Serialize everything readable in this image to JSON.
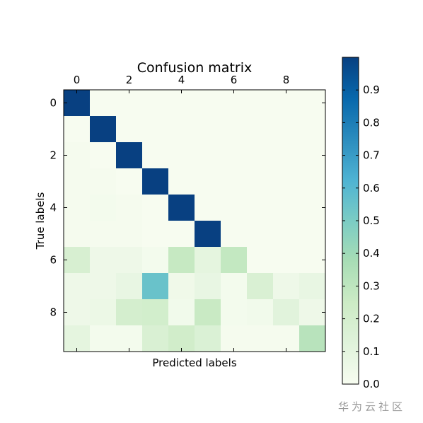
{
  "chart_data": {
    "type": "heatmap",
    "title": "Confusion matrix",
    "xlabel": "Predicted labels",
    "ylabel": "True labels",
    "x_tick_labels": [
      "0",
      "2",
      "4",
      "6",
      "8"
    ],
    "x_tick_values": [
      0,
      2,
      4,
      6,
      8
    ],
    "y_tick_labels": [
      "0",
      "2",
      "4",
      "6",
      "8"
    ],
    "y_tick_values": [
      0,
      2,
      4,
      6,
      8
    ],
    "x_tick_position": "top",
    "colormap": "GnBu",
    "value_range": [
      0.0,
      1.0
    ],
    "colorbar_ticks": [
      "0.0",
      "0.1",
      "0.2",
      "0.3",
      "0.4",
      "0.5",
      "0.6",
      "0.7",
      "0.8",
      "0.9"
    ],
    "colorbar_tick_values": [
      0.0,
      0.1,
      0.2,
      0.3,
      0.4,
      0.5,
      0.6,
      0.7,
      0.8,
      0.9
    ],
    "matrix": [
      [
        1.0,
        0.0,
        0.0,
        0.0,
        0.0,
        0.0,
        0.0,
        0.0,
        0.0,
        0.0
      ],
      [
        0.0,
        1.0,
        0.0,
        0.0,
        0.0,
        0.0,
        0.0,
        0.0,
        0.0,
        0.0
      ],
      [
        0.01,
        0.0,
        1.0,
        0.0,
        0.0,
        0.0,
        0.0,
        0.0,
        0.0,
        0.0
      ],
      [
        0.01,
        0.01,
        0.0,
        1.0,
        0.0,
        0.0,
        0.0,
        0.0,
        0.0,
        0.0
      ],
      [
        0.01,
        0.02,
        0.01,
        0.0,
        1.0,
        0.0,
        0.0,
        0.0,
        0.0,
        0.0
      ],
      [
        0.01,
        0.01,
        0.01,
        0.0,
        0.0,
        1.0,
        0.0,
        0.0,
        0.0,
        0.0
      ],
      [
        0.18,
        0.05,
        0.05,
        0.02,
        0.27,
        0.1,
        0.28,
        0.0,
        0.0,
        0.0
      ],
      [
        0.05,
        0.05,
        0.08,
        0.55,
        0.04,
        0.08,
        0.02,
        0.17,
        0.05,
        0.08
      ],
      [
        0.05,
        0.06,
        0.2,
        0.21,
        0.03,
        0.26,
        0.02,
        0.03,
        0.12,
        0.05
      ],
      [
        0.1,
        0.02,
        0.02,
        0.17,
        0.22,
        0.16,
        0.01,
        0.01,
        0.01,
        0.32
      ]
    ]
  },
  "watermark": "华为云社区"
}
